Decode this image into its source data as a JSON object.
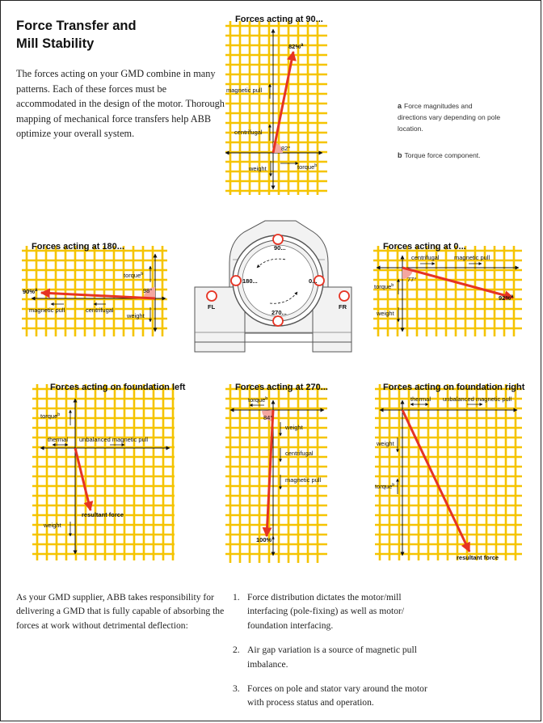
{
  "header": {
    "title_line1": "Force Transfer and",
    "title_line2": "Mill Stability"
  },
  "intro": {
    "text": "The forces acting on your GMD combine in many patterns. Each of these forces must be accommodated in the design of the motor. Thorough mapping of mechanical force transfers help ABB optimize your overall system."
  },
  "notes": [
    {
      "mark": "a",
      "text": "Force magnitudes and directions vary depending on pole location."
    },
    {
      "mark": "b",
      "text": "Torque force component."
    }
  ],
  "panels": {
    "p90": {
      "title": "Forces acting at 90...",
      "pct": "82%",
      "pct_sup": "a",
      "angle": "82°",
      "labels": [
        "magnetic pull",
        "centrifugal",
        "weight",
        "torque"
      ],
      "torque_sup": "b"
    },
    "p180": {
      "title": "Forces acting at 180...",
      "pct": "90%",
      "pct_sup": "a",
      "angle": "98°",
      "labels": [
        "torque",
        "magnetic pull",
        "centrifugal",
        "weight"
      ],
      "torque_sup": "b"
    },
    "p0": {
      "title": "Forces acting at 0...",
      "pct": "92%",
      "pct_sup": "a",
      "angle": "77°",
      "labels": [
        "centrifugal",
        "magnetic pull",
        "torque",
        "weight"
      ],
      "torque_sup": "b"
    },
    "pFL": {
      "title": "Forces acting on foundation left",
      "labels": [
        "torque",
        "thermal",
        "unbalanced magnetic pull",
        "resultant force",
        "weight"
      ],
      "torque_sup": "b"
    },
    "p270": {
      "title": "Forces acting at 270...",
      "pct": "100%",
      "pct_sup": "a",
      "angle": "84°",
      "labels": [
        "torque",
        "weight",
        "centrifugal",
        "magnetic pull"
      ],
      "torque_sup": "b"
    },
    "pFR": {
      "title": "Forces acting on foundation right",
      "labels": [
        "thermal",
        "unbalanced magnetic pull",
        "weight",
        "torque",
        "resultant force"
      ],
      "torque_sup": "b"
    }
  },
  "motor": {
    "labels": [
      "90...",
      "180...",
      "0...",
      "270...",
      "FL",
      "FR"
    ]
  },
  "closing": {
    "text": "As your GMD supplier, ABB takes responsibility for delivering a GMD that is fully capable of absorbing the forces at work without detrimental deflection:"
  },
  "list": [
    {
      "num": "1.",
      "text": "Force distribution dictates the motor/mill interfacing (pole-fixing) as well as motor/ foundation interfacing."
    },
    {
      "num": "2.",
      "text": "Air gap variation is a source of magnetic pull imbalance."
    },
    {
      "num": "3.",
      "text": "Forces on pole and stator vary around the motor with process status and operation."
    }
  ],
  "colors": {
    "grid": "#f5c400",
    "arrow": "#e63323",
    "angle_fill": "#f4a6a0"
  }
}
